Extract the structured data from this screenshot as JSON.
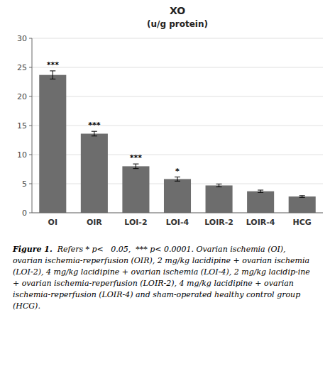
{
  "chart_data": {
    "type": "bar",
    "title": "XO",
    "subtitle": "(u/g protein)",
    "categories": [
      "OI",
      "OIR",
      "LOI-2",
      "LOI-4",
      "LOIR-2",
      "LOIR-4",
      "HCG"
    ],
    "values": [
      23.7,
      13.6,
      8.0,
      5.8,
      4.7,
      3.7,
      2.8
    ],
    "errors": [
      0.7,
      0.4,
      0.4,
      0.35,
      0.25,
      0.2,
      0.15
    ],
    "annotations": [
      "***",
      "***",
      "***",
      "*",
      null,
      null,
      null
    ],
    "color": "#6d6d6d",
    "ylim": [
      0,
      30
    ],
    "yticks": [
      0,
      5,
      10,
      15,
      20,
      25,
      30
    ],
    "grid": true,
    "caption_label": "Figure 1.",
    "caption": "  Refers * p<   0.05,  *** p< 0.0001. Ovarian ischemia (OI), ovarian ischemia-reperfusion (OIR), 2 mg/kg lacidipine + ovarian ischemia (LOI-2), 4 mg/kg lacidipine + ovarian ischemia (LOI-4), 2 mg/kg lacidip-ine + ovarian ischemia-reperfusion (LOIR-2), 4 mg/kg lacidipine + ovarian ischemia-reperfusion (LOIR-4) and sham-operated healthy control group (HCG)."
  }
}
